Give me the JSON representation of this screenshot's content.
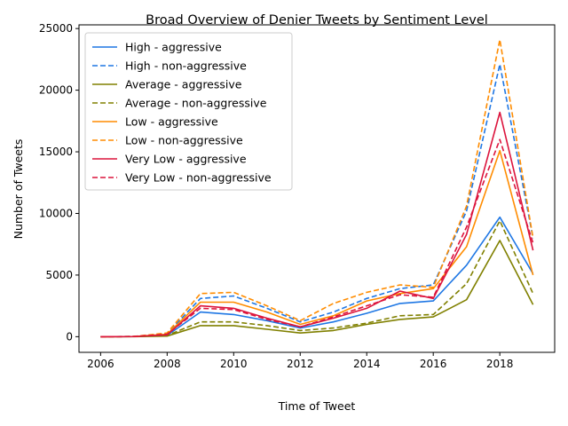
{
  "chart_data": {
    "type": "line",
    "title": "Broad Overview of Denier Tweets by Sentiment Level",
    "xlabel": "Time of Tweet",
    "ylabel": "Number of Tweets",
    "xlim": [
      2005.35,
      2019.65
    ],
    "ylim": [
      -1270,
      25300
    ],
    "xticks": [
      2006,
      2008,
      2010,
      2012,
      2014,
      2016,
      2018
    ],
    "yticks": [
      0,
      5000,
      10000,
      15000,
      20000,
      25000
    ],
    "grid": false,
    "legend_position": "top-left",
    "x": [
      2006,
      2007,
      2008,
      2009,
      2010,
      2011,
      2012,
      2013,
      2014,
      2015,
      2016,
      2017,
      2018,
      2019
    ],
    "series": [
      {
        "name": "High - aggressive",
        "color": "#1f77e4",
        "dash": "solid",
        "values": [
          0,
          10,
          100,
          2000,
          1800,
          1300,
          700,
          1200,
          1900,
          2700,
          2900,
          5800,
          9700,
          5100
        ]
      },
      {
        "name": "High - non-aggressive",
        "color": "#1f77e4",
        "dash": "dashed",
        "values": [
          0,
          20,
          250,
          3100,
          3300,
          2300,
          1200,
          2000,
          3100,
          3900,
          4200,
          10200,
          22100,
          8000
        ]
      },
      {
        "name": "Average - aggressive",
        "color": "#808000",
        "dash": "solid",
        "values": [
          0,
          5,
          50,
          900,
          900,
          600,
          300,
          500,
          1000,
          1400,
          1600,
          3000,
          7800,
          2600
        ]
      },
      {
        "name": "Average - non-aggressive",
        "color": "#808000",
        "dash": "dashed",
        "values": [
          0,
          10,
          100,
          1200,
          1200,
          900,
          500,
          700,
          1100,
          1700,
          1800,
          4300,
          9400,
          3500
        ]
      },
      {
        "name": "Low - aggressive",
        "color": "#ff8c00",
        "dash": "solid",
        "values": [
          0,
          10,
          200,
          2800,
          2800,
          2000,
          1000,
          1700,
          2900,
          3500,
          3900,
          7300,
          15100,
          5000
        ]
      },
      {
        "name": "Low - non-aggressive",
        "color": "#ff8c00",
        "dash": "dashed",
        "values": [
          0,
          20,
          300,
          3500,
          3600,
          2500,
          1300,
          2700,
          3600,
          4200,
          4000,
          10600,
          24100,
          8000
        ]
      },
      {
        "name": "Very Low - aggressive",
        "color": "#dc143c",
        "dash": "solid",
        "values": [
          0,
          10,
          150,
          2500,
          2300,
          1500,
          800,
          1500,
          2300,
          3700,
          3100,
          8300,
          18200,
          7000
        ]
      },
      {
        "name": "Very Low - non-aggressive",
        "color": "#dc143c",
        "dash": "dashed",
        "values": [
          0,
          15,
          200,
          2300,
          2200,
          1400,
          800,
          1600,
          2500,
          3400,
          3200,
          8900,
          16000,
          7600
        ]
      }
    ]
  }
}
